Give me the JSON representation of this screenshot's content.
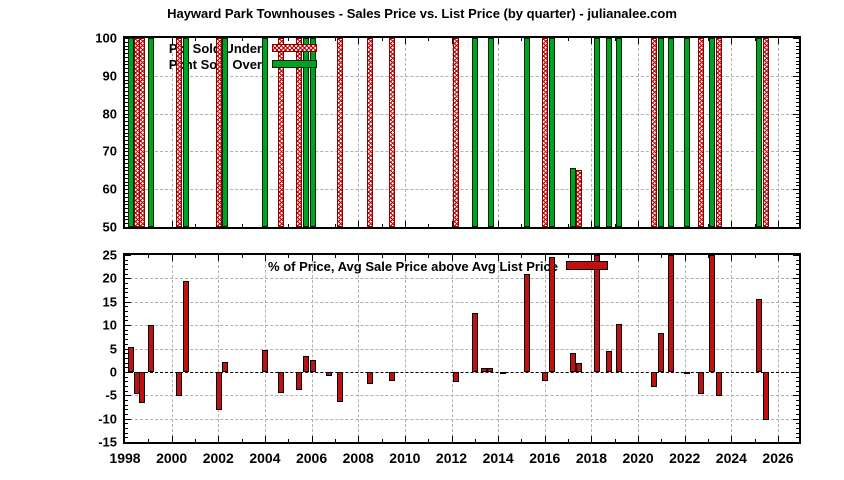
{
  "title": "Hayward Park Townhouses - Sales Price vs. List Price (by quarter) - julianalee.com",
  "colors": {
    "green": "#00a221",
    "red": "#c01010",
    "hatch_red": "#c00000",
    "grid": "#b0b0b0"
  },
  "chart_data": [
    {
      "type": "bar",
      "name": "pct-sold-under-over-by-quarter",
      "ylim": [
        50,
        100
      ],
      "yticks": [
        50,
        60,
        70,
        80,
        90,
        100
      ],
      "xlim": [
        1998,
        2026.9
      ],
      "xticks": [
        1998,
        2000,
        2002,
        2004,
        2006,
        2008,
        2010,
        2012,
        2014,
        2016,
        2018,
        2020,
        2022,
        2024,
        2026
      ],
      "baseline": 50,
      "grid": true,
      "legend_position": "top-left-inside",
      "legend": [
        {
          "name": "Pct Sold Under",
          "style": "red-hatch"
        },
        {
          "name": "Pcnt Sold Over",
          "style": "green-solid"
        }
      ],
      "series": [
        {
          "name": "Pct Sold Under",
          "style": "red-hatch",
          "x": [
            1998.5,
            1998.75,
            2000.3,
            2002.05,
            2004.7,
            2005.45,
            2007.2,
            2008.5,
            2009.45,
            2012.2,
            2016.0,
            2017.45,
            2020.7,
            2022.7,
            2023.45,
            2025.5
          ],
          "values": [
            100,
            100,
            100,
            100,
            100,
            100,
            100,
            100,
            100,
            100,
            100,
            65,
            100,
            100,
            100,
            100
          ]
        },
        {
          "name": "Pcnt Sold Over",
          "style": "green-solid",
          "x": [
            1998.25,
            1999.1,
            2000.6,
            2002.3,
            2004.0,
            2005.75,
            2006.05,
            2013.0,
            2013.7,
            2015.25,
            2016.3,
            2017.2,
            2018.25,
            2018.75,
            2019.2,
            2021.0,
            2021.4,
            2022.1,
            2023.15,
            2025.2
          ],
          "values": [
            100,
            100,
            100,
            100,
            100,
            100,
            100,
            100,
            100,
            100,
            100,
            65.5,
            100,
            100,
            100,
            100,
            100,
            100,
            100,
            100
          ]
        }
      ]
    },
    {
      "type": "bar",
      "name": "pct-avg-sale-price-above-avg-list-price",
      "ylim": [
        -15,
        25
      ],
      "yticks": [
        -15,
        -10,
        -5,
        0,
        5,
        10,
        15,
        20,
        25
      ],
      "xlim": [
        1998,
        2026.9
      ],
      "xticks": [
        1998,
        2000,
        2002,
        2004,
        2006,
        2008,
        2010,
        2012,
        2014,
        2016,
        2018,
        2020,
        2022,
        2024,
        2026
      ],
      "baseline": 0,
      "grid": true,
      "legend_position": "top-center-inside",
      "legend": [
        {
          "name": "% of Price, Avg Sale Price above Avg List Price",
          "style": "red-solid"
        }
      ],
      "clipped_at_top": [
        2018.25,
        2021.4,
        2023.15
      ],
      "series": [
        {
          "name": "% of Price, Avg Sale Price above Avg List Price",
          "style": "red-solid",
          "x": [
            1998.25,
            1998.5,
            1998.75,
            1999.1,
            2000.3,
            2000.6,
            2002.05,
            2002.3,
            2004.0,
            2004.7,
            2005.45,
            2005.75,
            2006.05,
            2006.75,
            2007.2,
            2008.5,
            2009.45,
            2012.2,
            2013.0,
            2013.4,
            2013.65,
            2014.2,
            2015.25,
            2016.0,
            2016.3,
            2017.2,
            2017.45,
            2018.25,
            2018.75,
            2019.2,
            2020.7,
            2021.0,
            2021.4,
            2022.1,
            2022.7,
            2023.15,
            2023.45,
            2025.2,
            2025.5
          ],
          "values": [
            5.3,
            -4.8,
            -6.7,
            10,
            -5.1,
            19.5,
            -8.2,
            2.2,
            4.6,
            -4.5,
            -3.8,
            3.4,
            2.5,
            -0.9,
            -6.4,
            -2.5,
            -1.9,
            -2.1,
            12.6,
            0.9,
            0.9,
            -0.4,
            21,
            -2,
            24.5,
            4,
            1.8,
            25,
            4.5,
            10.3,
            -3.2,
            8.3,
            25,
            -0.3,
            -4.8,
            25,
            -5.2,
            15.6,
            -10.3
          ]
        }
      ]
    }
  ]
}
